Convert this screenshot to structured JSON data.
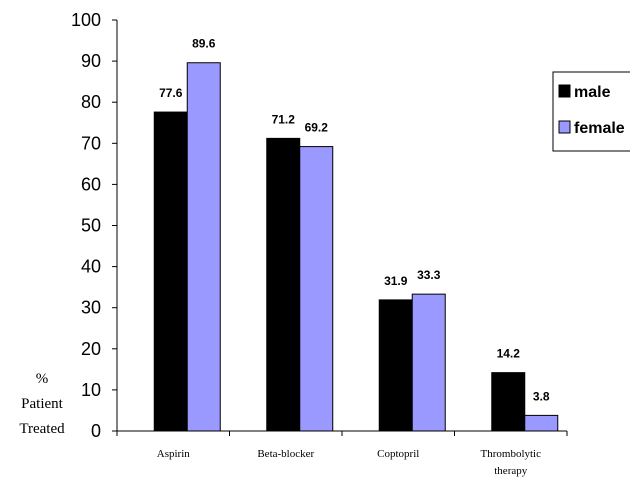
{
  "chart_data": {
    "type": "bar",
    "categories": [
      "Aspirin",
      "Beta-blocker",
      "Coptopril",
      "Thrombolytic therapy"
    ],
    "series": [
      {
        "name": "male",
        "values": [
          77.6,
          71.2,
          31.9,
          14.2
        ],
        "color": "#000000"
      },
      {
        "name": "female",
        "values": [
          89.6,
          69.2,
          33.3,
          3.8
        ],
        "color": "#9999ff"
      }
    ],
    "data_labels": [
      [
        "77.6",
        "71.2",
        "31.9",
        "14.2"
      ],
      [
        "89.6",
        "69.2",
        "33.3",
        "3.8"
      ]
    ],
    "ylabel": [
      "%",
      "Patient",
      "Treated"
    ],
    "ylim": [
      0,
      100
    ],
    "yticks": [
      0,
      10,
      20,
      30,
      40,
      50,
      60,
      70,
      80,
      90,
      100
    ],
    "grid": false,
    "legend": "right"
  }
}
